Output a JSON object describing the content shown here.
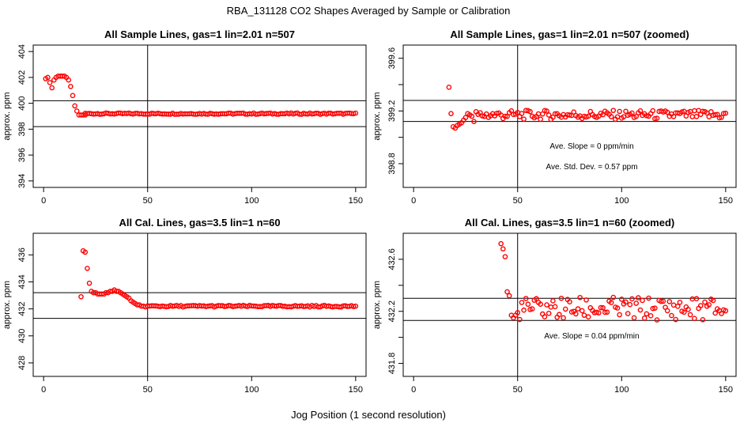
{
  "figure": {
    "title": "RBA_131128  CO2 Shapes Averaged by Sample or Calibration",
    "xlabel": "Jog Position (1 second resolution)"
  },
  "chart_data": [
    {
      "type": "scatter",
      "title": "All Sample Lines, gas=1 lin=2.01 n=507",
      "ylabel": "approx. ppm",
      "xlim": [
        -5,
        155
      ],
      "ylim": [
        393.5,
        404.5
      ],
      "xticks": [
        0,
        50,
        100,
        150
      ],
      "yticks": [
        394,
        396,
        398,
        400,
        402,
        404
      ],
      "vline": 50,
      "hlines": [
        398.2,
        400.2
      ],
      "annotations": [],
      "series": [
        {
          "color": "#ff0000",
          "marker": "open-circle",
          "x": [
            1,
            2,
            3,
            4,
            5,
            6,
            7,
            8,
            9,
            10,
            11,
            12,
            13,
            14,
            15,
            16,
            17,
            18,
            19,
            20
          ],
          "y": [
            401.9,
            402.0,
            401.6,
            401.2,
            401.8,
            402.0,
            402.1,
            402.1,
            402.1,
            402.1,
            402.0,
            401.8,
            401.3,
            400.6,
            399.8,
            399.4,
            399.1,
            399.1,
            399.1,
            399.1
          ],
          "flat": {
            "from": 20,
            "to": 150,
            "value": 399.2,
            "jitter": 0.05
          }
        }
      ]
    },
    {
      "type": "scatter",
      "title": "All Sample Lines, gas=1 lin=2.01 n=507 (zoomed)",
      "ylabel": "approx. ppm",
      "xlim": [
        -5,
        155
      ],
      "ylim": [
        398.62,
        399.7
      ],
      "xticks": [
        0,
        50,
        100,
        150
      ],
      "yticks": [
        398.8,
        399.0,
        399.2,
        399.4,
        399.6
      ],
      "ytick_labels": [
        "398.8",
        "",
        "399.2",
        "",
        "399.6"
      ],
      "vline": 50,
      "hlines": [
        399.12,
        399.28
      ],
      "annotations": [
        "Ave. Slope =  0  ppm/min",
        "Ave. Std. Dev. =  0.57  ppm"
      ],
      "series": [
        {
          "color": "#ff0000",
          "marker": "open-circle",
          "x": [
            17,
            18,
            19,
            20,
            21,
            22,
            23,
            24,
            25,
            26,
            27,
            28,
            29
          ],
          "y": [
            399.38,
            399.18,
            399.08,
            399.07,
            399.09,
            399.1,
            399.11,
            399.13,
            399.15,
            399.18,
            399.17,
            399.16,
            399.12
          ],
          "flat": {
            "from": 30,
            "to": 150,
            "value": 399.17,
            "jitter": 0.035
          }
        }
      ]
    },
    {
      "type": "scatter",
      "title": "All Cal. Lines, gas=3.5 lin=1 n=60",
      "ylabel": "approx. ppm",
      "xlim": [
        -5,
        155
      ],
      "ylim": [
        427,
        437.6
      ],
      "xticks": [
        0,
        50,
        100,
        150
      ],
      "yticks": [
        428,
        430,
        432,
        434,
        436
      ],
      "vline": 50,
      "hlines": [
        431.3,
        433.2
      ],
      "annotations": [],
      "series": [
        {
          "color": "#ff0000",
          "marker": "open-circle",
          "x": [
            18,
            19,
            20,
            21,
            22,
            23,
            24,
            25,
            26,
            27,
            28,
            29,
            30,
            31,
            32,
            33,
            34,
            35,
            36,
            37,
            38,
            39,
            40,
            41,
            42,
            43,
            44,
            45,
            46,
            47,
            48
          ],
          "y": [
            432.9,
            436.3,
            436.2,
            435.0,
            433.9,
            433.3,
            433.2,
            433.2,
            433.1,
            433.1,
            433.1,
            433.1,
            433.2,
            433.2,
            433.3,
            433.3,
            433.4,
            433.3,
            433.3,
            433.2,
            433.1,
            433.0,
            432.9,
            432.8,
            432.6,
            432.5,
            432.4,
            432.3,
            432.3,
            432.2,
            432.2
          ],
          "flat": {
            "from": 49,
            "to": 150,
            "value": 432.2,
            "jitter": 0.06
          }
        }
      ]
    },
    {
      "type": "scatter",
      "title": "All Cal. Lines, gas=3.5 lin=1 n=60 (zoomed)",
      "ylabel": "approx. ppm",
      "xlim": [
        -5,
        155
      ],
      "ylim": [
        431.7,
        432.8
      ],
      "xticks": [
        0,
        50,
        100,
        150
      ],
      "yticks": [
        431.8,
        432.0,
        432.2,
        432.4,
        432.6
      ],
      "ytick_labels": [
        "431.8",
        "",
        "432.2",
        "",
        "432.6"
      ],
      "vline": 50,
      "hlines": [
        432.13,
        432.3
      ],
      "annotations": [
        "Ave. Slope =  0.04  ppm/min"
      ],
      "series": [
        {
          "color": "#ff0000",
          "marker": "open-circle",
          "x": [
            42,
            43,
            44,
            45,
            46,
            47,
            48,
            49,
            50
          ],
          "y": [
            432.72,
            432.68,
            432.62,
            432.35,
            432.32,
            432.17,
            432.15,
            432.17,
            432.19
          ],
          "flat": {
            "from": 51,
            "to": 150,
            "value": 432.22,
            "jitter": 0.09
          }
        }
      ]
    }
  ]
}
